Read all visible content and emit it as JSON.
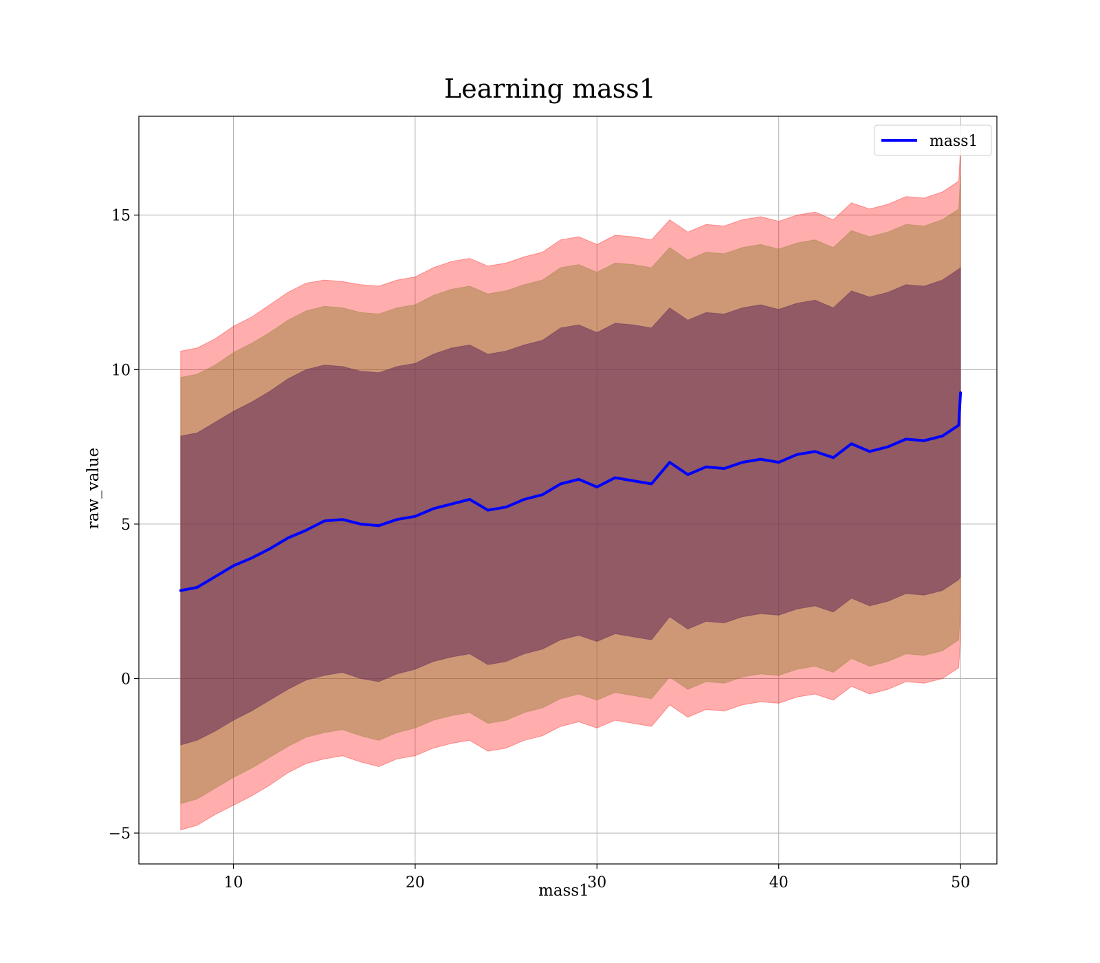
{
  "chart_data": {
    "type": "line",
    "title": "Learning mass1",
    "xlabel": "mass1",
    "ylabel": "raw_value",
    "xlim": [
      4.8,
      52.0
    ],
    "ylim": [
      -6.0,
      18.2
    ],
    "xticks": [
      10,
      20,
      30,
      40,
      50
    ],
    "yticks": [
      -5,
      0,
      5,
      10,
      15
    ],
    "grid": true,
    "legend": {
      "position": "top-right",
      "entries": [
        "mass1"
      ]
    },
    "colors": {
      "line": "#0000ff",
      "band_outer": "#ff0000",
      "band_middle": "#8b7d2e",
      "band_inner": "#5a2055"
    },
    "series": [
      {
        "name": "mass1",
        "x": [
          7.1,
          8,
          9,
          10,
          11,
          12,
          13,
          14,
          15,
          16,
          17,
          18,
          19,
          20,
          21,
          22,
          23,
          24,
          25,
          26,
          27,
          28,
          29,
          30,
          31,
          32,
          33,
          34,
          35,
          36,
          37,
          38,
          39,
          40,
          41,
          42,
          43,
          44,
          45,
          46,
          47,
          48,
          49,
          49.9,
          50.0
        ],
        "y": [
          2.85,
          2.95,
          3.3,
          3.65,
          3.9,
          4.2,
          4.55,
          4.8,
          5.1,
          5.15,
          5.0,
          4.95,
          5.15,
          5.25,
          5.5,
          5.65,
          5.8,
          5.45,
          5.55,
          5.8,
          5.95,
          6.3,
          6.45,
          6.2,
          6.5,
          6.4,
          6.3,
          7.0,
          6.6,
          6.85,
          6.8,
          7.0,
          7.1,
          7.0,
          7.25,
          7.35,
          7.15,
          7.6,
          7.35,
          7.5,
          7.75,
          7.7,
          7.85,
          8.2,
          9.25
        ]
      }
    ],
    "bands": [
      {
        "level": "outer",
        "x": [
          7.1,
          8,
          9,
          10,
          11,
          12,
          13,
          14,
          15,
          16,
          17,
          18,
          19,
          20,
          21,
          22,
          23,
          24,
          25,
          26,
          27,
          28,
          29,
          30,
          31,
          32,
          33,
          34,
          35,
          36,
          37,
          38,
          39,
          40,
          41,
          42,
          43,
          44,
          45,
          46,
          47,
          48,
          49,
          49.9,
          50.0
        ],
        "upper": [
          10.6,
          10.7,
          11.0,
          11.4,
          11.7,
          12.1,
          12.5,
          12.8,
          12.9,
          12.85,
          12.75,
          12.7,
          12.9,
          13.0,
          13.3,
          13.5,
          13.6,
          13.35,
          13.45,
          13.65,
          13.8,
          14.2,
          14.3,
          14.05,
          14.35,
          14.3,
          14.2,
          14.85,
          14.45,
          14.7,
          14.65,
          14.85,
          14.95,
          14.8,
          15.0,
          15.1,
          14.85,
          15.4,
          15.2,
          15.35,
          15.6,
          15.55,
          15.75,
          16.1,
          17.2
        ],
        "lower": [
          -4.9,
          -4.75,
          -4.4,
          -4.1,
          -3.8,
          -3.45,
          -3.05,
          -2.75,
          -2.6,
          -2.5,
          -2.7,
          -2.85,
          -2.6,
          -2.5,
          -2.25,
          -2.1,
          -2.0,
          -2.35,
          -2.25,
          -2.0,
          -1.85,
          -1.55,
          -1.4,
          -1.6,
          -1.35,
          -1.45,
          -1.55,
          -0.85,
          -1.25,
          -1.0,
          -1.05,
          -0.85,
          -0.75,
          -0.8,
          -0.6,
          -0.5,
          -0.7,
          -0.25,
          -0.5,
          -0.35,
          -0.1,
          -0.15,
          0.0,
          0.35,
          1.3
        ]
      },
      {
        "level": "middle",
        "x": [
          7.1,
          8,
          9,
          10,
          11,
          12,
          13,
          14,
          15,
          16,
          17,
          18,
          19,
          20,
          21,
          22,
          23,
          24,
          25,
          26,
          27,
          28,
          29,
          30,
          31,
          32,
          33,
          34,
          35,
          36,
          37,
          38,
          39,
          40,
          41,
          42,
          43,
          44,
          45,
          46,
          47,
          48,
          49,
          49.9,
          50.0
        ],
        "upper": [
          9.75,
          9.85,
          10.15,
          10.55,
          10.85,
          11.2,
          11.6,
          11.9,
          12.05,
          12.0,
          11.85,
          11.8,
          12.0,
          12.1,
          12.4,
          12.6,
          12.7,
          12.45,
          12.55,
          12.75,
          12.9,
          13.3,
          13.4,
          13.15,
          13.45,
          13.4,
          13.3,
          13.95,
          13.55,
          13.8,
          13.75,
          13.95,
          14.05,
          13.9,
          14.1,
          14.2,
          13.95,
          14.5,
          14.3,
          14.45,
          14.7,
          14.65,
          14.85,
          15.2,
          16.3
        ],
        "lower": [
          -4.05,
          -3.9,
          -3.55,
          -3.2,
          -2.9,
          -2.55,
          -2.2,
          -1.9,
          -1.75,
          -1.65,
          -1.85,
          -2.0,
          -1.75,
          -1.6,
          -1.35,
          -1.2,
          -1.1,
          -1.45,
          -1.35,
          -1.1,
          -0.95,
          -0.65,
          -0.5,
          -0.7,
          -0.45,
          -0.55,
          -0.65,
          0.05,
          -0.35,
          -0.1,
          -0.15,
          0.05,
          0.15,
          0.1,
          0.3,
          0.4,
          0.2,
          0.65,
          0.4,
          0.55,
          0.8,
          0.75,
          0.9,
          1.25,
          2.3
        ]
      },
      {
        "level": "inner",
        "x": [
          7.1,
          8,
          9,
          10,
          11,
          12,
          13,
          14,
          15,
          16,
          17,
          18,
          19,
          20,
          21,
          22,
          23,
          24,
          25,
          26,
          27,
          28,
          29,
          30,
          31,
          32,
          33,
          34,
          35,
          36,
          37,
          38,
          39,
          40,
          41,
          42,
          43,
          44,
          45,
          46,
          47,
          48,
          49,
          49.9,
          50.0
        ],
        "upper": [
          7.85,
          7.95,
          8.3,
          8.65,
          8.95,
          9.3,
          9.7,
          10.0,
          10.15,
          10.1,
          9.95,
          9.9,
          10.1,
          10.2,
          10.5,
          10.7,
          10.8,
          10.5,
          10.6,
          10.8,
          10.95,
          11.35,
          11.45,
          11.2,
          11.5,
          11.45,
          11.35,
          12.0,
          11.6,
          11.85,
          11.8,
          12.0,
          12.1,
          11.95,
          12.15,
          12.25,
          12.0,
          12.55,
          12.35,
          12.5,
          12.75,
          12.7,
          12.9,
          13.25,
          13.3
        ],
        "lower": [
          -2.15,
          -2.0,
          -1.7,
          -1.35,
          -1.05,
          -0.7,
          -0.35,
          -0.05,
          0.1,
          0.2,
          0.0,
          -0.1,
          0.15,
          0.3,
          0.55,
          0.7,
          0.8,
          0.45,
          0.55,
          0.8,
          0.95,
          1.25,
          1.4,
          1.2,
          1.45,
          1.35,
          1.25,
          2.0,
          1.6,
          1.85,
          1.8,
          2.0,
          2.1,
          2.05,
          2.25,
          2.35,
          2.15,
          2.6,
          2.35,
          2.5,
          2.75,
          2.7,
          2.85,
          3.2,
          3.3
        ]
      }
    ]
  }
}
